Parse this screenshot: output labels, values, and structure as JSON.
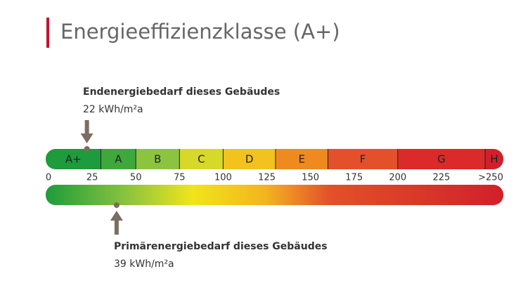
{
  "title": "Energieeffizienzklasse (A+)",
  "scale": {
    "range": [
      0,
      250
    ],
    "ticks": [
      0,
      25,
      50,
      75,
      100,
      125,
      150,
      175,
      200,
      225,
      {
        "value": 250,
        "label": ">250"
      }
    ]
  },
  "classes": [
    {
      "label": "A+",
      "from": 0,
      "color": "#1e9b3c"
    },
    {
      "label": "A",
      "from": 30,
      "color": "#3fa83a"
    },
    {
      "label": "B",
      "from": 50,
      "color": "#8cc43f"
    },
    {
      "label": "C",
      "from": 75,
      "color": "#d7d829"
    },
    {
      "label": "D",
      "from": 100,
      "color": "#f3c21e"
    },
    {
      "label": "E",
      "from": 130,
      "color": "#ee8a1f"
    },
    {
      "label": "F",
      "from": 160,
      "color": "#e4502a"
    },
    {
      "label": "G",
      "from": 200,
      "color": "#dc2a2a"
    },
    {
      "label": "H",
      "from": 250,
      "color": "#d21f2b"
    }
  ],
  "end_demand": {
    "label": "Endenergiebedarf dieses Gebäudes",
    "value": 22,
    "text": "22 kWh/m²a"
  },
  "primary_demand": {
    "label": "Primärenergiebedarf dieses Gebäudes",
    "value": 39,
    "text": "39 kWh/m²a"
  }
}
